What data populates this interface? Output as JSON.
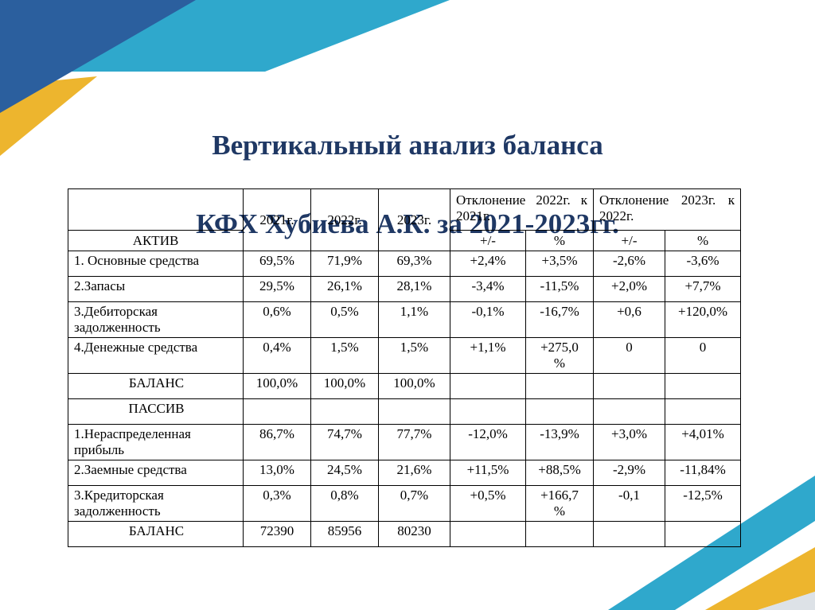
{
  "title": {
    "line1": "Вертикальный анализ баланса",
    "line2": "КФХ Хубиева  А.К. за 2021-2023гг."
  },
  "table": {
    "header": {
      "year1": "2021г.",
      "year2": "2022г.",
      "year3": "2023г.",
      "deviation1": "Отклонение 2022г. к 2021г.",
      "deviation2": "Отклонение 2023г. к 2022г.",
      "aktiv": "АКТИВ",
      "pm1": "+/-",
      "pct1": "%",
      "pm2": "+/-",
      "pct2": "%"
    },
    "rows": [
      {
        "label": "1. Основные средства",
        "align": "left",
        "cells": [
          "69,5%",
          "71,9%",
          "69,3%",
          "+2,4%",
          "+3,5%",
          "-2,6%",
          "-3,6%"
        ]
      },
      {
        "label": "2.Запасы",
        "align": "left",
        "cells": [
          "29,5%",
          "26,1%",
          "28,1%",
          "-3,4%",
          "-11,5%",
          "+2,0%",
          "+7,7%"
        ]
      },
      {
        "label": "3.Дебиторская задолженность",
        "align": "left",
        "cells": [
          "0,6%",
          "0,5%",
          "1,1%",
          "-0,1%",
          "-16,7%",
          "+0,6",
          "+120,0%"
        ]
      },
      {
        "label": "4.Денежные средства",
        "align": "left",
        "cells": [
          "0,4%",
          "1,5%",
          "1,5%",
          "+1,1%",
          "+275,0\n%",
          "0",
          "0"
        ]
      },
      {
        "label": "БАЛАНС",
        "align": "center",
        "cells": [
          "100,0%",
          "100,0%",
          "100,0%",
          "",
          "",
          "",
          ""
        ]
      },
      {
        "label": "ПАССИВ",
        "align": "center",
        "cells": [
          "",
          "",
          "",
          "",
          "",
          "",
          ""
        ]
      },
      {
        "label": "1.Нераспределенная прибыль",
        "align": "left",
        "cells": [
          "86,7%",
          "74,7%",
          "77,7%",
          "-12,0%",
          "-13,9%",
          "+3,0%",
          "+4,01%"
        ]
      },
      {
        "label": "2.Заемные средства",
        "align": "left",
        "cells": [
          "13,0%",
          "24,5%",
          "21,6%",
          "+11,5%",
          "+88,5%",
          "-2,9%",
          "-11,84%"
        ]
      },
      {
        "label": "3.Кредиторская задолженность",
        "align": "left",
        "cells": [
          "0,3%",
          "0,8%",
          "0,7%",
          "+0,5%",
          "+166,7\n%",
          "-0,1",
          "-12,5%"
        ]
      },
      {
        "label": "БАЛАНС",
        "align": "center",
        "cells": [
          "72390",
          "85956",
          "80230",
          "",
          "",
          "",
          ""
        ]
      }
    ]
  },
  "colors": {
    "navy": "#2b5f9e",
    "teal": "#2fa8cc",
    "gold": "#edb52e",
    "title": "#1f3864",
    "corner_gray": "#dde2e7"
  }
}
